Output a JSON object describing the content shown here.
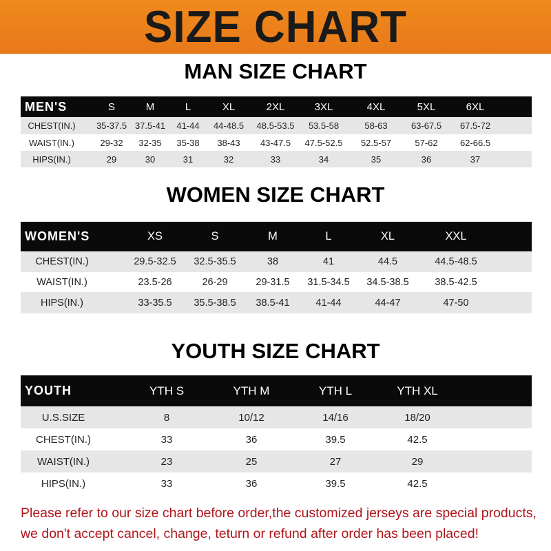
{
  "title": "SIZE CHART",
  "accent_color": "#f08a1c",
  "footer_color": "#b0161c",
  "men": {
    "title": "MAN SIZE CHART",
    "header": [
      "MEN'S",
      "S",
      "M",
      "L",
      "XL",
      "2XL",
      "3XL",
      "4XL",
      "5XL",
      "6XL"
    ],
    "rows": [
      [
        "CHEST(IN.)",
        "35-37.5",
        "37.5-41",
        "41-44",
        "44-48.5",
        "48.5-53.5",
        "53.5-58",
        "58-63",
        "63-67.5",
        "67.5-72"
      ],
      [
        "WAIST(IN.)",
        "29-32",
        "32-35",
        "35-38",
        "38-43",
        "43-47.5",
        "47.5-52.5",
        "52.5-57",
        "57-62",
        "62-66.5"
      ],
      [
        "HIPS(IN.)",
        "29",
        "30",
        "31",
        "32",
        "33",
        "34",
        "35",
        "36",
        "37"
      ]
    ]
  },
  "women": {
    "title": "WOMEN SIZE CHART",
    "header": [
      "WOMEN'S",
      "XS",
      "S",
      "M",
      "L",
      "XL",
      "XXL"
    ],
    "rows": [
      [
        "CHEST(IN.)",
        "29.5-32.5",
        "32.5-35.5",
        "38",
        "41",
        "44.5",
        "44.5-48.5"
      ],
      [
        "WAIST(IN.)",
        "23.5-26",
        "26-29",
        "29-31.5",
        "31.5-34.5",
        "34.5-38.5",
        "38.5-42.5"
      ],
      [
        "HIPS(IN.)",
        "33-35.5",
        "35.5-38.5",
        "38.5-41",
        "41-44",
        "44-47",
        "47-50"
      ]
    ]
  },
  "youth": {
    "title": "YOUTH SIZE CHART",
    "header": [
      "YOUTH",
      "YTH S",
      "YTH M",
      "YTH L",
      "YTH XL"
    ],
    "rows": [
      [
        "U.S.SIZE",
        "8",
        "10/12",
        "14/16",
        "18/20"
      ],
      [
        "CHEST(IN.)",
        "33",
        "36",
        "39.5",
        "42.5"
      ],
      [
        "WAIST(IN.)",
        "23",
        "25",
        "27",
        "29"
      ],
      [
        "HIPS(IN.)",
        "33",
        "36",
        "39.5",
        "42.5"
      ]
    ]
  },
  "footer": [
    "Please refer to our size chart before order,the customized jerseys are special products,",
    "we don't accept cancel, change, teturn or refund after order has been placed!"
  ]
}
